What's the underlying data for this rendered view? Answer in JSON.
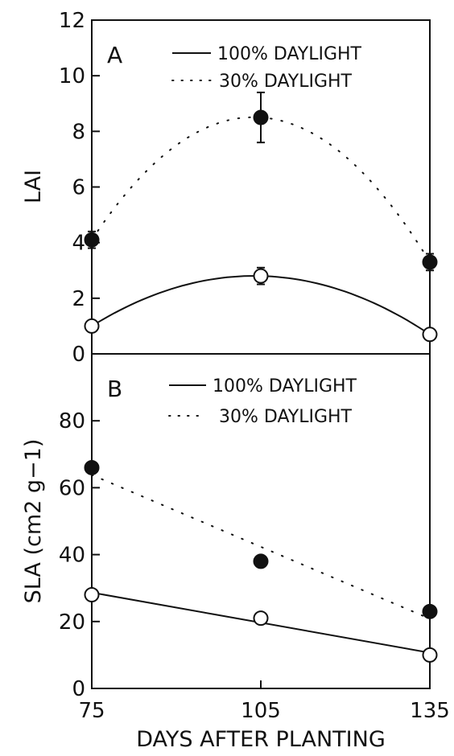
{
  "chart_data": [
    {
      "type": "line",
      "panel_label": "A",
      "ylabel": "LAI",
      "ylim": [
        0,
        12
      ],
      "yticks": [
        "0",
        "2",
        "4",
        "6",
        "8",
        "10",
        "12"
      ],
      "x": [
        75,
        105,
        135
      ],
      "series": [
        {
          "name": "100% DAYLIGHT",
          "values": [
            1.0,
            2.8,
            0.7
          ],
          "marker": "open-circle",
          "line": "solid",
          "error": [
            0,
            0.3,
            0
          ]
        },
        {
          "name": "30% DAYLIGHT",
          "values": [
            4.1,
            8.5,
            3.3
          ],
          "marker": "filled-circle",
          "line": "dotted",
          "error": [
            0.3,
            0.9,
            0.3
          ]
        }
      ]
    },
    {
      "type": "line",
      "panel_label": "B",
      "ylabel": "SLA (cm2 g−1)",
      "ylim": [
        0,
        100
      ],
      "yticks": [
        "0",
        "20",
        "40",
        "60",
        "80"
      ],
      "x": [
        75,
        105,
        135
      ],
      "xticks": [
        "75",
        "105",
        "135"
      ],
      "xlabel": "DAYS AFTER PLANTING",
      "series": [
        {
          "name": "100% DAYLIGHT",
          "values": [
            28,
            21,
            10
          ],
          "marker": "open-circle",
          "line": "solid"
        },
        {
          "name": "30% DAYLIGHT",
          "values": [
            66,
            38,
            23
          ],
          "marker": "filled-circle",
          "line": "dotted"
        }
      ]
    }
  ]
}
